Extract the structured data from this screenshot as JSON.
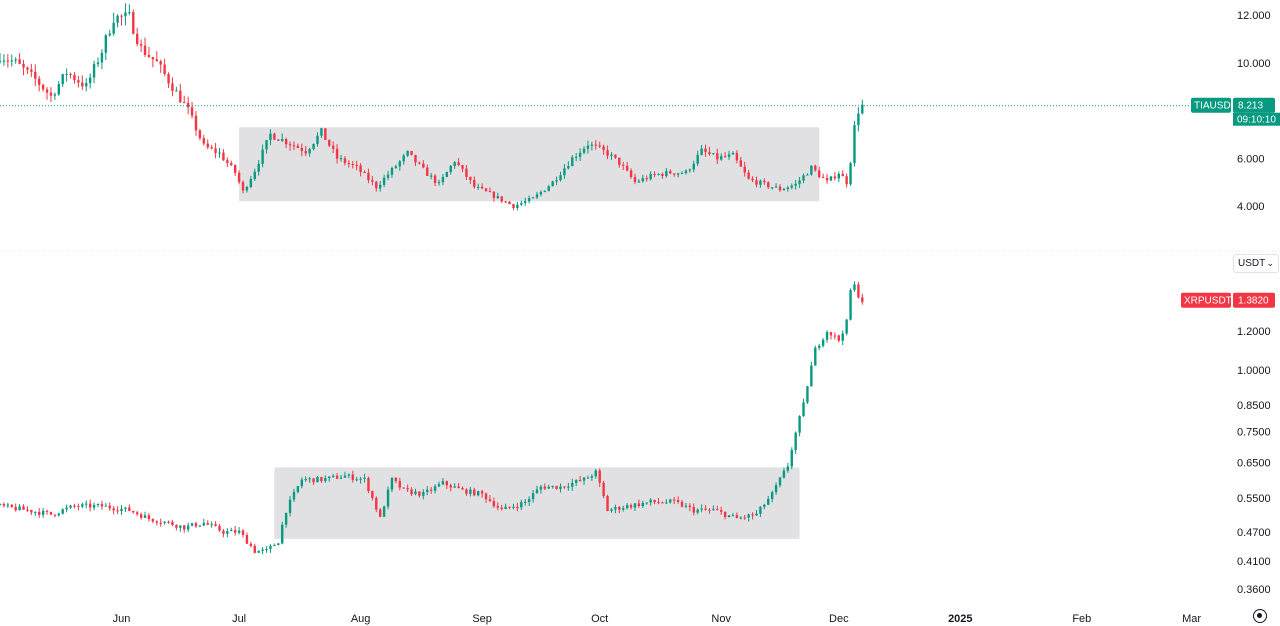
{
  "chart_data": [
    {
      "type": "candlestick",
      "symbol": "TIAUSD",
      "last_price": "8.213",
      "countdown": "09:10:10",
      "y_ticks": [
        "12.000",
        "10.000",
        "6.000",
        "4.000"
      ],
      "y_tick_values": [
        12,
        10,
        6,
        4
      ],
      "ylim": [
        2.3,
        12.7
      ],
      "y_scale": "linear",
      "x_range": [
        "2024-05-01",
        "2025-03-08"
      ],
      "range_box": {
        "from": "2024-07-01",
        "to": "2024-11-26",
        "low": 4.2,
        "high": 7.3
      },
      "anchors": [
        [
          "2024-05-01",
          10.3
        ],
        [
          "2024-05-05",
          10.0
        ],
        [
          "2024-05-10",
          9.3
        ],
        [
          "2024-05-14",
          8.6
        ],
        [
          "2024-05-18",
          9.6
        ],
        [
          "2024-05-23",
          9.0
        ],
        [
          "2024-05-27",
          10.5
        ],
        [
          "2024-05-30",
          11.9
        ],
        [
          "2024-06-03",
          11.9
        ],
        [
          "2024-06-06",
          10.6
        ],
        [
          "2024-06-10",
          10.0
        ],
        [
          "2024-06-14",
          9.0
        ],
        [
          "2024-06-18",
          8.0
        ],
        [
          "2024-06-22",
          6.5
        ],
        [
          "2024-06-26",
          6.2
        ],
        [
          "2024-06-30",
          5.4
        ],
        [
          "2024-07-02",
          4.6
        ],
        [
          "2024-07-05",
          5.5
        ],
        [
          "2024-07-09",
          7.0
        ],
        [
          "2024-07-13",
          6.7
        ],
        [
          "2024-07-18",
          6.3
        ],
        [
          "2024-07-22",
          7.1
        ],
        [
          "2024-07-26",
          6.0
        ],
        [
          "2024-07-31",
          5.6
        ],
        [
          "2024-08-05",
          4.8
        ],
        [
          "2024-08-09",
          5.5
        ],
        [
          "2024-08-13",
          6.2
        ],
        [
          "2024-08-17",
          5.5
        ],
        [
          "2024-08-21",
          4.9
        ],
        [
          "2024-08-25",
          5.9
        ],
        [
          "2024-08-30",
          4.8
        ],
        [
          "2024-09-03",
          4.5
        ],
        [
          "2024-09-09",
          4.0
        ],
        [
          "2024-09-14",
          4.3
        ],
        [
          "2024-09-19",
          5.0
        ],
        [
          "2024-09-24",
          6.0
        ],
        [
          "2024-09-28",
          6.6
        ],
        [
          "2024-10-03",
          6.2
        ],
        [
          "2024-10-06",
          5.8
        ],
        [
          "2024-10-10",
          5.0
        ],
        [
          "2024-10-15",
          5.3
        ],
        [
          "2024-10-19",
          5.4
        ],
        [
          "2024-10-23",
          5.4
        ],
        [
          "2024-10-27",
          6.3
        ],
        [
          "2024-10-31",
          6.0
        ],
        [
          "2024-11-04",
          6.1
        ],
        [
          "2024-11-08",
          5.1
        ],
        [
          "2024-11-12",
          4.9
        ],
        [
          "2024-11-16",
          4.7
        ],
        [
          "2024-11-20",
          4.9
        ],
        [
          "2024-11-24",
          5.6
        ],
        [
          "2024-11-28",
          5.0
        ],
        [
          "2024-12-01",
          5.4
        ],
        [
          "2024-12-03",
          5.0
        ],
        [
          "2024-12-04",
          5.9
        ],
        [
          "2024-12-05",
          7.3
        ],
        [
          "2024-12-06",
          8.0
        ],
        [
          "2024-12-07",
          8.2
        ]
      ],
      "line_color": "#089981",
      "up_color": "#089981",
      "down_color": "#f23645"
    },
    {
      "type": "candlestick",
      "symbol": "XRPUSDT",
      "last_price": "1.3820",
      "currency_selector": "USDT",
      "y_ticks": [
        "1.2000",
        "1.0000",
        "0.8500",
        "0.7500",
        "0.6500",
        "0.5500",
        "0.4700",
        "0.4100",
        "0.3600"
      ],
      "y_tick_values": [
        1.2,
        1.0,
        0.85,
        0.75,
        0.65,
        0.55,
        0.47,
        0.41,
        0.36
      ],
      "y_scale": "log",
      "x_range": [
        "2024-05-01",
        "2025-03-08"
      ],
      "range_box": {
        "from": "2024-07-10",
        "to": "2024-11-21",
        "low": 0.455,
        "high": 0.635
      },
      "anchors": [
        [
          "2024-05-01",
          0.53
        ],
        [
          "2024-05-08",
          0.52
        ],
        [
          "2024-05-14",
          0.51
        ],
        [
          "2024-05-20",
          0.53
        ],
        [
          "2024-05-27",
          0.53
        ],
        [
          "2024-06-03",
          0.52
        ],
        [
          "2024-06-08",
          0.5
        ],
        [
          "2024-06-13",
          0.49
        ],
        [
          "2024-06-17",
          0.48
        ],
        [
          "2024-06-22",
          0.49
        ],
        [
          "2024-06-27",
          0.47
        ],
        [
          "2024-07-01",
          0.47
        ],
        [
          "2024-07-05",
          0.43
        ],
        [
          "2024-07-08",
          0.43
        ],
        [
          "2024-07-11",
          0.45
        ],
        [
          "2024-07-13",
          0.52
        ],
        [
          "2024-07-17",
          0.6
        ],
        [
          "2024-07-22",
          0.6
        ],
        [
          "2024-07-28",
          0.61
        ],
        [
          "2024-08-02",
          0.6
        ],
        [
          "2024-08-06",
          0.5
        ],
        [
          "2024-08-09",
          0.6
        ],
        [
          "2024-08-12",
          0.57
        ],
        [
          "2024-08-17",
          0.56
        ],
        [
          "2024-08-22",
          0.59
        ],
        [
          "2024-08-27",
          0.57
        ],
        [
          "2024-09-01",
          0.56
        ],
        [
          "2024-09-06",
          0.52
        ],
        [
          "2024-09-12",
          0.54
        ],
        [
          "2024-09-16",
          0.58
        ],
        [
          "2024-09-21",
          0.58
        ],
        [
          "2024-09-27",
          0.6
        ],
        [
          "2024-09-30",
          0.62
        ],
        [
          "2024-10-03",
          0.52
        ],
        [
          "2024-10-08",
          0.53
        ],
        [
          "2024-10-14",
          0.54
        ],
        [
          "2024-10-20",
          0.54
        ],
        [
          "2024-10-25",
          0.52
        ],
        [
          "2024-10-30",
          0.52
        ],
        [
          "2024-11-05",
          0.5
        ],
        [
          "2024-11-10",
          0.51
        ],
        [
          "2024-11-14",
          0.56
        ],
        [
          "2024-11-18",
          0.64
        ],
        [
          "2024-11-22",
          0.85
        ],
        [
          "2024-11-25",
          1.1
        ],
        [
          "2024-11-28",
          1.2
        ],
        [
          "2024-12-01",
          1.15
        ],
        [
          "2024-12-03",
          1.25
        ],
        [
          "2024-12-04",
          1.45
        ],
        [
          "2024-12-05",
          1.48
        ],
        [
          "2024-12-06",
          1.42
        ],
        [
          "2024-12-07",
          1.382
        ]
      ],
      "line_color": "#f23645",
      "up_color": "#089981",
      "down_color": "#f23645"
    }
  ],
  "time_axis": {
    "labels": [
      "Jun",
      "Jul",
      "Aug",
      "Sep",
      "Oct",
      "Nov",
      "Dec",
      "2025",
      "Feb",
      "Mar"
    ],
    "dates": [
      "2024-06-01",
      "2024-07-01",
      "2024-08-01",
      "2024-09-01",
      "2024-10-01",
      "2024-11-01",
      "2024-12-01",
      "2025-01-01",
      "2025-02-01",
      "2025-03-01"
    ]
  },
  "colors": {
    "background": "#ffffff",
    "range_box": "#e1e1e4",
    "grid": "#f0f3fa",
    "divider": "#e0e3eb",
    "price_line": "#089981"
  },
  "icons": {
    "settings": "gear-icon",
    "dropdown": "chevron-down-icon"
  }
}
